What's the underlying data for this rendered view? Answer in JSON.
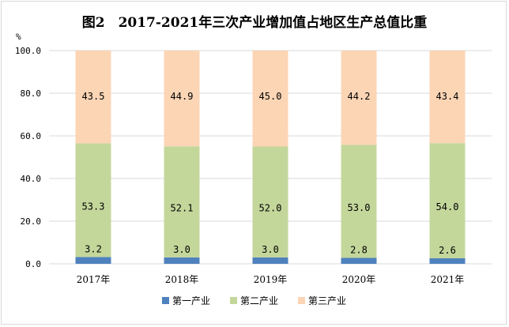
{
  "chart_data": {
    "type": "bar",
    "stacked": true,
    "title": "图2　2017-2021年三次产业增加值占地区生产总值比重",
    "ylabel": "%",
    "xlabel": "",
    "ylim": [
      0,
      100
    ],
    "yticks": [
      "0.0",
      "20.0",
      "40.0",
      "60.0",
      "80.0",
      "100.0"
    ],
    "categories": [
      "2017年",
      "2018年",
      "2019年",
      "2020年",
      "2021年"
    ],
    "series": [
      {
        "name": "第一产业",
        "color": "#4F81BD",
        "values": [
          3.2,
          3.0,
          3.0,
          2.8,
          2.6
        ]
      },
      {
        "name": "第二产业",
        "color": "#C4D79B",
        "values": [
          53.3,
          52.1,
          52.0,
          53.0,
          54.0
        ]
      },
      {
        "name": "第三产业",
        "color": "#FCD5B5",
        "values": [
          43.5,
          44.9,
          45.0,
          44.2,
          43.4
        ]
      }
    ],
    "grid": true,
    "legend": "bottom"
  }
}
